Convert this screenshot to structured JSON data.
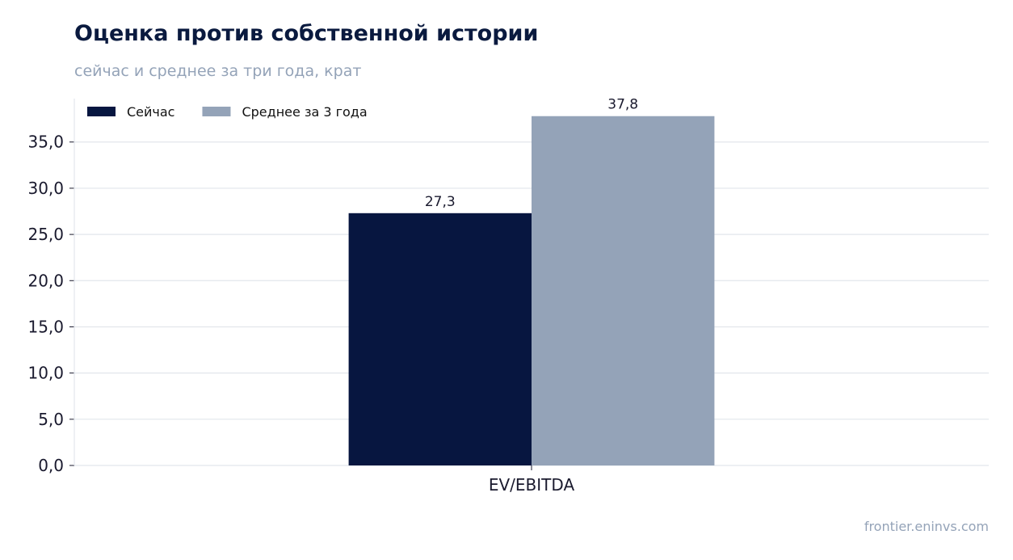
{
  "title": "Оценка против собственной истории",
  "subtitle": "сейчас и среднее за три года, крат",
  "source": "frontier.eninvs.com",
  "chart_data": {
    "type": "bar",
    "title": "Оценка против собственной истории",
    "subtitle": "сейчас и среднее за три года, крат",
    "xlabel": "",
    "ylabel": "",
    "categories": [
      "EV/EBITDA"
    ],
    "series": [
      {
        "name": "Сейчас",
        "values": [
          27.3
        ],
        "labels": [
          "27,3"
        ],
        "color": "#071640"
      },
      {
        "name": "Среднее за 3 года",
        "values": [
          37.8
        ],
        "labels": [
          "37,8"
        ],
        "color": "#94a3b8"
      }
    ],
    "ylim": [
      0,
      39.7
    ],
    "yticks": [
      0,
      5,
      10,
      15,
      20,
      25,
      30,
      35
    ],
    "ytick_labels": [
      "0,0",
      "5,0",
      "10,0",
      "15,0",
      "20,0",
      "25,0",
      "30,0",
      "35,0"
    ],
    "grid": true,
    "legend_position": "top-left"
  }
}
